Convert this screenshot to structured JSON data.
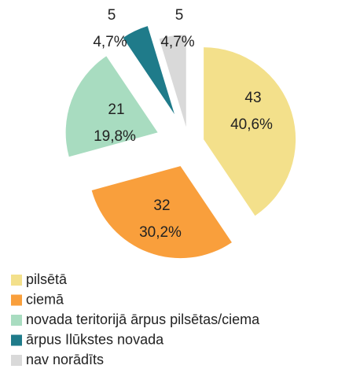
{
  "chart_data": {
    "type": "pie",
    "categories": [
      "pilsētā",
      "ciemā",
      "novada teritorijā ārpus pilsētas/ciema",
      "ārpus Ilūkstes novada",
      "nav norādīts"
    ],
    "values": [
      43,
      32,
      21,
      5,
      5
    ],
    "percent_labels": [
      "40,6%",
      "30,2%",
      "19,8%",
      "4,7%",
      "4,7%"
    ],
    "colors": [
      "#f3e08b",
      "#f99f3c",
      "#a8dcc0",
      "#1f7b8a",
      "#d9d9d9"
    ],
    "legend": "bottom-left"
  }
}
